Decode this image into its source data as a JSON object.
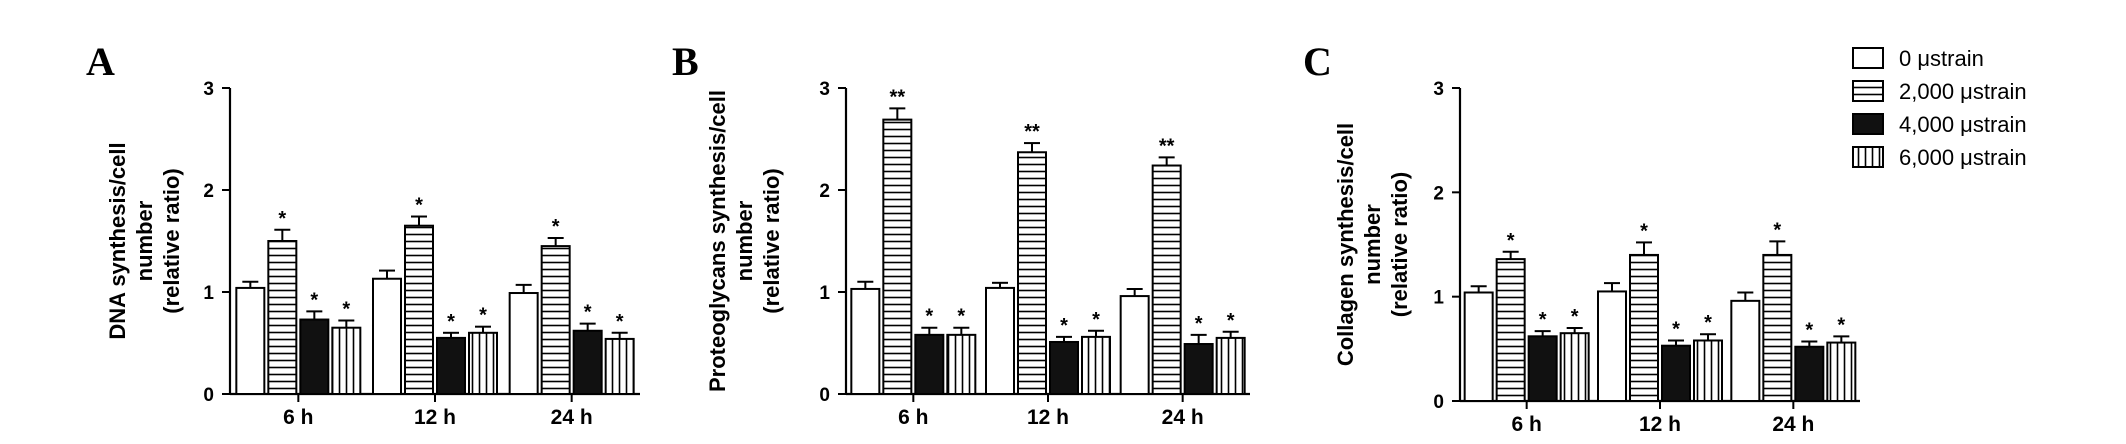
{
  "legend": {
    "entries": [
      "0 μstrain",
      "2,000 μstrain",
      "4,000 μstrain",
      "6,000 μstrain"
    ],
    "placement": "top-right"
  },
  "series_styles": [
    {
      "fill": "#ffffff",
      "pattern": "none"
    },
    {
      "fill": "#ffffff",
      "pattern": "horizontal-lines"
    },
    {
      "fill": "#111111",
      "pattern": "solid"
    },
    {
      "fill": "#ffffff",
      "pattern": "vertical-lines"
    }
  ],
  "chart_data": [
    {
      "type": "bar",
      "panel": "A",
      "ylabel_lines": [
        "DNA synthesis/cell",
        "number",
        "(relative ratio)"
      ],
      "categories": [
        "6 h",
        "12 h",
        "24 h"
      ],
      "ylim": [
        0,
        3
      ],
      "yticks": [
        "0",
        "1",
        "2",
        "3"
      ],
      "series": [
        {
          "name": "0 μstrain",
          "values": [
            1.04,
            1.13,
            0.99
          ],
          "errors": [
            0.06,
            0.08,
            0.08
          ],
          "marks": [
            "",
            "",
            ""
          ]
        },
        {
          "name": "2,000 μstrain",
          "values": [
            1.5,
            1.65,
            1.45
          ],
          "errors": [
            0.11,
            0.09,
            0.08
          ],
          "marks": [
            "*",
            "*",
            "*"
          ]
        },
        {
          "name": "4,000 μstrain",
          "values": [
            0.73,
            0.55,
            0.62
          ],
          "errors": [
            0.08,
            0.05,
            0.07
          ],
          "marks": [
            "*",
            "*",
            "*"
          ]
        },
        {
          "name": "6,000 μstrain",
          "values": [
            0.65,
            0.6,
            0.54
          ],
          "errors": [
            0.07,
            0.06,
            0.06
          ],
          "marks": [
            "*",
            "*",
            "*"
          ]
        }
      ]
    },
    {
      "type": "bar",
      "panel": "B",
      "ylabel_lines": [
        "Proteoglycans synthesis/cell",
        "number",
        "(relative ratio)"
      ],
      "categories": [
        "6 h",
        "12 h",
        "24 h"
      ],
      "ylim": [
        0,
        3
      ],
      "yticks": [
        "0",
        "1",
        "2",
        "3"
      ],
      "series": [
        {
          "name": "0 μstrain",
          "values": [
            1.03,
            1.04,
            0.96
          ],
          "errors": [
            0.07,
            0.05,
            0.07
          ],
          "marks": [
            "",
            "",
            ""
          ]
        },
        {
          "name": "2,000 μstrain",
          "values": [
            2.69,
            2.37,
            2.24
          ],
          "errors": [
            0.11,
            0.09,
            0.08
          ],
          "marks": [
            "**",
            "**",
            "**"
          ]
        },
        {
          "name": "4,000 μstrain",
          "values": [
            0.58,
            0.51,
            0.49
          ],
          "errors": [
            0.07,
            0.05,
            0.09
          ],
          "marks": [
            "*",
            "*",
            "*"
          ]
        },
        {
          "name": "6,000 μstrain",
          "values": [
            0.58,
            0.56,
            0.55
          ],
          "errors": [
            0.07,
            0.06,
            0.06
          ],
          "marks": [
            "*",
            "*",
            "*"
          ]
        }
      ]
    },
    {
      "type": "bar",
      "panel": "C",
      "ylabel_lines": [
        "Collagen synthesis/cell",
        "number",
        "(relative ratio)"
      ],
      "categories": [
        "6 h",
        "12 h",
        "24 h"
      ],
      "ylim": [
        0,
        3
      ],
      "yticks": [
        "0",
        "1",
        "2",
        "3"
      ],
      "series": [
        {
          "name": "0 μstrain",
          "values": [
            1.04,
            1.05,
            0.96
          ],
          "errors": [
            0.06,
            0.08,
            0.08
          ],
          "marks": [
            "",
            "",
            ""
          ]
        },
        {
          "name": "2,000 μstrain",
          "values": [
            1.36,
            1.4,
            1.4
          ],
          "errors": [
            0.07,
            0.12,
            0.13
          ],
          "marks": [
            "*",
            "*",
            "*"
          ]
        },
        {
          "name": "4,000 μstrain",
          "values": [
            0.62,
            0.53,
            0.52
          ],
          "errors": [
            0.05,
            0.05,
            0.05
          ],
          "marks": [
            "*",
            "*",
            "*"
          ]
        },
        {
          "name": "6,000 μstrain",
          "values": [
            0.65,
            0.58,
            0.56
          ],
          "errors": [
            0.05,
            0.06,
            0.06
          ],
          "marks": [
            "*",
            "*",
            "*"
          ]
        }
      ]
    }
  ]
}
